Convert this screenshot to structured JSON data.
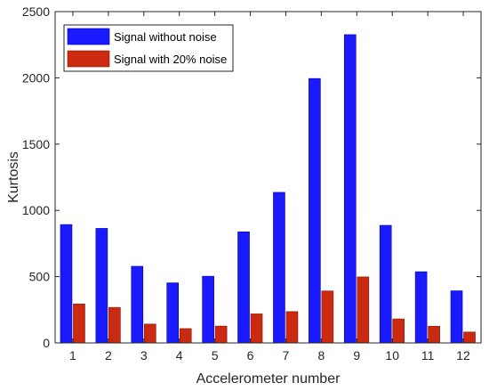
{
  "chart_data": {
    "type": "bar",
    "title": "",
    "xlabel": "Accelerometer number",
    "ylabel": "Kurtosis",
    "categories": [
      "1",
      "2",
      "3",
      "4",
      "5",
      "6",
      "7",
      "8",
      "9",
      "10",
      "11",
      "12"
    ],
    "series": [
      {
        "name": "Signal without noise",
        "color": "#1a1aff",
        "values": [
          893,
          864,
          578,
          453,
          503,
          838,
          1136,
          1995,
          2326,
          887,
          537,
          393
        ]
      },
      {
        "name": "Signal with 20% noise",
        "color": "#cc2a10",
        "values": [
          294,
          268,
          142,
          108,
          127,
          219,
          236,
          392,
          498,
          181,
          126,
          82
        ]
      }
    ],
    "ylim": [
      0,
      2500
    ],
    "yticks": [
      "0",
      "500",
      "1000",
      "1500",
      "2000",
      "2500"
    ],
    "grid": false,
    "legend": "top-left"
  }
}
